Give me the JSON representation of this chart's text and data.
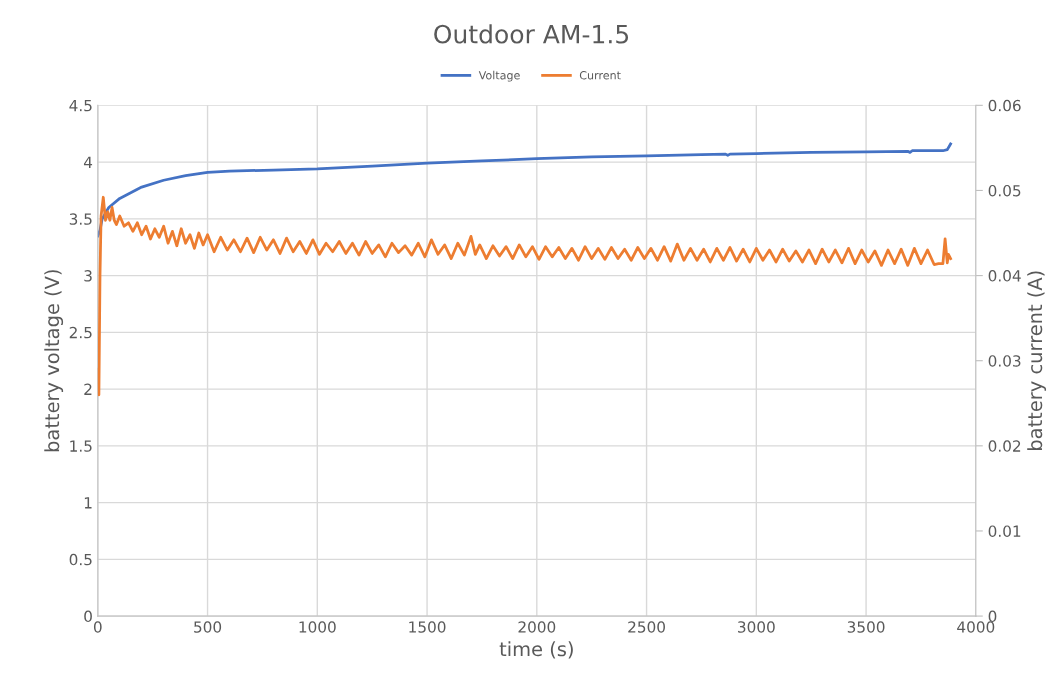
{
  "chart_data": {
    "type": "line",
    "title": "Outdoor AM-1.5",
    "xlabel": "time (s)",
    "ylabel": "battery voltage (V)",
    "y2label": "battery current (A)",
    "xlim": [
      0,
      4000
    ],
    "xticks": [
      0,
      500,
      1000,
      1500,
      2000,
      2500,
      3000,
      3500,
      4000
    ],
    "ylim": [
      0,
      4.5
    ],
    "yticks": [
      0,
      0.5,
      1,
      1.5,
      2,
      2.5,
      3,
      3.5,
      4,
      4.5
    ],
    "y2lim": [
      0,
      0.06
    ],
    "y2ticks": [
      0,
      0.01,
      0.02,
      0.03,
      0.04,
      0.05,
      0.06
    ],
    "grid": true,
    "legend": "top",
    "marker": "none",
    "line_style": "solid",
    "series": [
      {
        "name": "Voltage",
        "color": "#4472c4",
        "x": [
          0,
          10,
          20,
          50,
          100,
          150,
          200,
          300,
          400,
          500,
          600,
          800,
          1000,
          1250,
          1500,
          1750,
          2000,
          2250,
          2500,
          2750,
          2860,
          2870,
          2880,
          3000,
          3250,
          3500,
          3690,
          3700,
          3710,
          3850,
          3870,
          3885
        ],
        "values": [
          3.35,
          3.4,
          3.5,
          3.6,
          3.68,
          3.73,
          3.78,
          3.84,
          3.88,
          3.91,
          3.92,
          3.93,
          3.94,
          3.965,
          3.99,
          4.01,
          4.03,
          4.045,
          4.055,
          4.065,
          4.07,
          4.06,
          4.07,
          4.075,
          4.085,
          4.09,
          4.095,
          4.085,
          4.1,
          4.1,
          4.11,
          4.16
        ]
      },
      {
        "name": "Current",
        "color": "#ed7d31",
        "axis": "y2",
        "x": [
          0,
          5,
          10,
          15,
          25,
          35,
          45,
          55,
          65,
          75,
          85,
          100,
          120,
          140,
          160,
          180,
          200,
          220,
          240,
          260,
          280,
          300,
          320,
          340,
          360,
          380,
          400,
          420,
          440,
          460,
          480,
          500,
          530,
          560,
          590,
          620,
          650,
          680,
          710,
          740,
          770,
          800,
          830,
          860,
          890,
          920,
          950,
          980,
          1010,
          1040,
          1070,
          1100,
          1130,
          1160,
          1190,
          1220,
          1250,
          1280,
          1310,
          1340,
          1370,
          1400,
          1430,
          1460,
          1490,
          1520,
          1550,
          1580,
          1610,
          1640,
          1670,
          1700,
          1720,
          1740,
          1770,
          1800,
          1830,
          1860,
          1890,
          1920,
          1950,
          1980,
          2010,
          2040,
          2070,
          2100,
          2130,
          2160,
          2190,
          2220,
          2250,
          2280,
          2310,
          2340,
          2370,
          2400,
          2430,
          2460,
          2490,
          2520,
          2550,
          2580,
          2610,
          2640,
          2670,
          2700,
          2730,
          2760,
          2790,
          2820,
          2850,
          2880,
          2910,
          2940,
          2970,
          3000,
          3030,
          3060,
          3090,
          3120,
          3150,
          3180,
          3210,
          3240,
          3270,
          3300,
          3330,
          3360,
          3390,
          3420,
          3450,
          3480,
          3510,
          3540,
          3570,
          3600,
          3630,
          3660,
          3690,
          3720,
          3750,
          3780,
          3810,
          3830,
          3850,
          3860,
          3870,
          3875,
          3885
        ],
        "values": [
          0.029,
          0.026,
          0.04,
          0.047,
          0.0492,
          0.0465,
          0.0475,
          0.0465,
          0.048,
          0.0465,
          0.046,
          0.047,
          0.0458,
          0.0462,
          0.0452,
          0.0462,
          0.0448,
          0.0458,
          0.0443,
          0.0455,
          0.0445,
          0.0458,
          0.0438,
          0.0452,
          0.0435,
          0.0455,
          0.0438,
          0.0448,
          0.0432,
          0.045,
          0.0436,
          0.0448,
          0.0428,
          0.0445,
          0.043,
          0.0442,
          0.0428,
          0.0444,
          0.0427,
          0.0445,
          0.043,
          0.0442,
          0.0426,
          0.0444,
          0.0428,
          0.044,
          0.0426,
          0.0442,
          0.0425,
          0.0438,
          0.0428,
          0.044,
          0.0426,
          0.0438,
          0.0424,
          0.044,
          0.0426,
          0.0436,
          0.0422,
          0.0438,
          0.0427,
          0.0435,
          0.0424,
          0.0438,
          0.0422,
          0.0442,
          0.0425,
          0.0436,
          0.042,
          0.0438,
          0.0424,
          0.0446,
          0.0425,
          0.0436,
          0.042,
          0.0435,
          0.0423,
          0.0434,
          0.042,
          0.0436,
          0.0422,
          0.0434,
          0.0419,
          0.0434,
          0.0422,
          0.0433,
          0.042,
          0.0432,
          0.0418,
          0.0434,
          0.042,
          0.0432,
          0.0419,
          0.0433,
          0.042,
          0.0431,
          0.0418,
          0.0433,
          0.042,
          0.0432,
          0.0418,
          0.0434,
          0.0417,
          0.0437,
          0.0418,
          0.0432,
          0.0418,
          0.0431,
          0.0416,
          0.0432,
          0.0418,
          0.0433,
          0.0417,
          0.0431,
          0.0416,
          0.0432,
          0.0418,
          0.043,
          0.0416,
          0.0431,
          0.0417,
          0.0429,
          0.0416,
          0.043,
          0.0414,
          0.0431,
          0.0416,
          0.043,
          0.0415,
          0.0432,
          0.0414,
          0.043,
          0.0416,
          0.0429,
          0.0412,
          0.043,
          0.0414,
          0.0431,
          0.0412,
          0.0432,
          0.0414,
          0.043,
          0.0413,
          0.0414,
          0.0414,
          0.0443,
          0.0415,
          0.0425,
          0.042
        ]
      }
    ]
  }
}
